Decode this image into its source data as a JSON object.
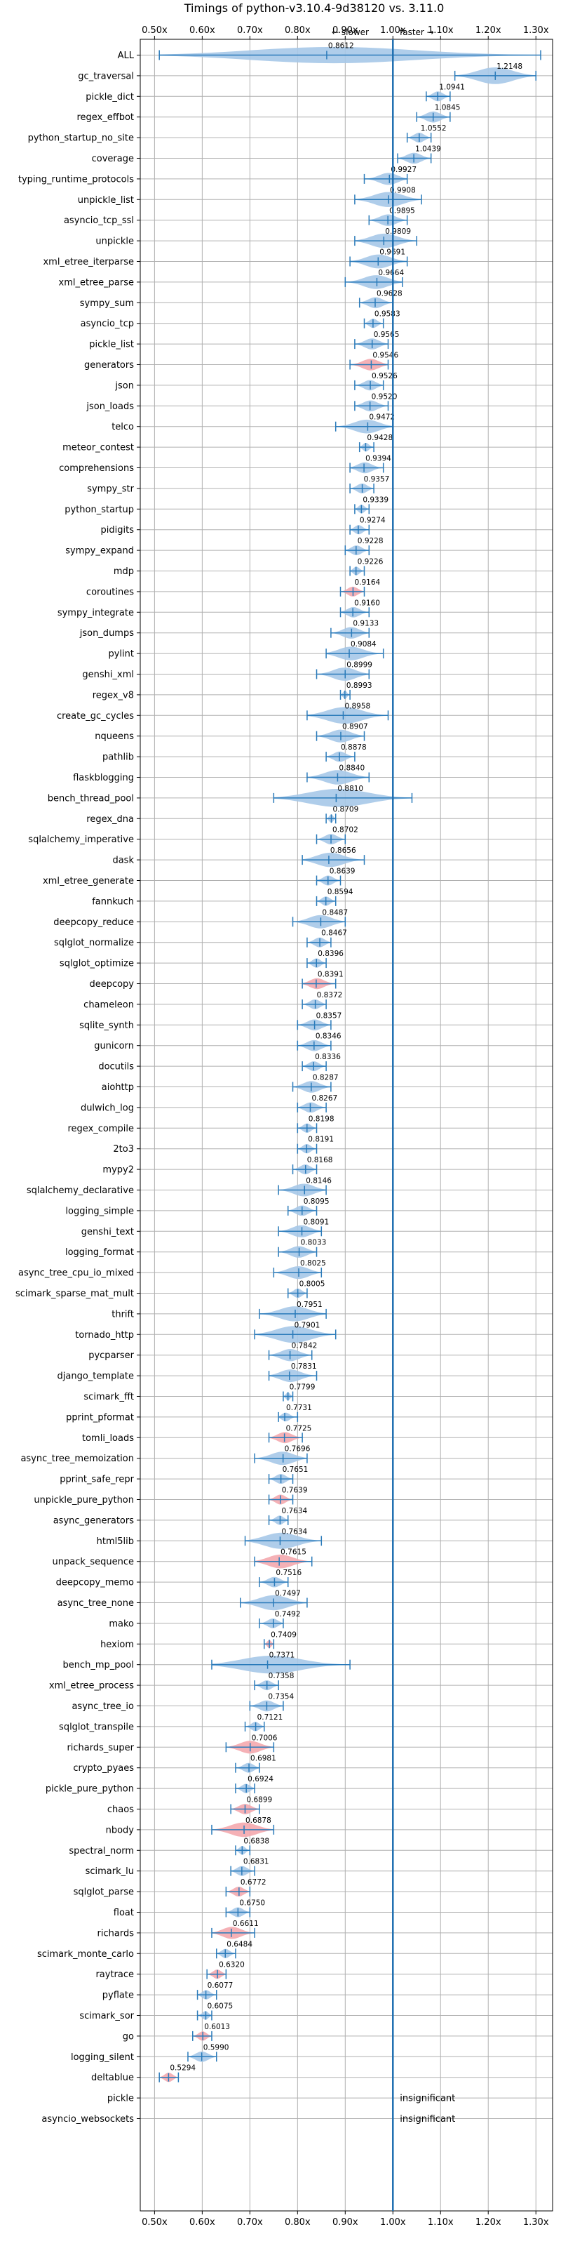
{
  "chart_data": {
    "type": "violin",
    "title": "Timings of python-v3.10.4-9d38120 vs. 3.11.0",
    "direction_left": "← slower",
    "direction_right": "faster →",
    "xlim": [
      0.47,
      1.335
    ],
    "x_ticks": [
      0.5,
      0.6,
      0.7,
      0.8,
      0.9,
      1.0,
      1.1,
      1.2,
      1.3
    ],
    "x_tick_labels": [
      "0.50x",
      "0.60x",
      "0.70x",
      "0.80x",
      "0.90x",
      "1.00x",
      "1.10x",
      "1.20x",
      "1.30x"
    ],
    "reference_line": 1.0,
    "grid": true,
    "colors": {
      "normal": "#a6c8e8",
      "highlight": "#f4a8ae",
      "bar": "#2b7bba",
      "reference": "#1f6fb0",
      "grid": "#b0b0b0"
    },
    "benchmarks": [
      {
        "name": "ALL",
        "value": 0.8612,
        "lo": 0.51,
        "hi": 1.31,
        "hl": false
      },
      {
        "name": "gc_traversal",
        "value": 1.2148,
        "lo": 1.13,
        "hi": 1.3,
        "hl": false
      },
      {
        "name": "pickle_dict",
        "value": 1.0941,
        "lo": 1.07,
        "hi": 1.12,
        "hl": false
      },
      {
        "name": "regex_effbot",
        "value": 1.0845,
        "lo": 1.05,
        "hi": 1.12,
        "hl": false
      },
      {
        "name": "python_startup_no_site",
        "value": 1.0552,
        "lo": 1.03,
        "hi": 1.08,
        "hl": false
      },
      {
        "name": "coverage",
        "value": 1.0439,
        "lo": 1.01,
        "hi": 1.08,
        "hl": false
      },
      {
        "name": "typing_runtime_protocols",
        "value": 0.9927,
        "lo": 0.94,
        "hi": 1.03,
        "hl": false
      },
      {
        "name": "unpickle_list",
        "value": 0.9908,
        "lo": 0.92,
        "hi": 1.06,
        "hl": false
      },
      {
        "name": "asyncio_tcp_ssl",
        "value": 0.9895,
        "lo": 0.95,
        "hi": 1.03,
        "hl": false
      },
      {
        "name": "unpickle",
        "value": 0.9809,
        "lo": 0.92,
        "hi": 1.05,
        "hl": false
      },
      {
        "name": "xml_etree_iterparse",
        "value": 0.9691,
        "lo": 0.91,
        "hi": 1.03,
        "hl": false
      },
      {
        "name": "xml_etree_parse",
        "value": 0.9664,
        "lo": 0.9,
        "hi": 1.02,
        "hl": false
      },
      {
        "name": "sympy_sum",
        "value": 0.9628,
        "lo": 0.93,
        "hi": 1.0,
        "hl": false
      },
      {
        "name": "asyncio_tcp",
        "value": 0.9583,
        "lo": 0.94,
        "hi": 0.98,
        "hl": false
      },
      {
        "name": "pickle_list",
        "value": 0.9565,
        "lo": 0.92,
        "hi": 0.99,
        "hl": false
      },
      {
        "name": "generators",
        "value": 0.9546,
        "lo": 0.91,
        "hi": 0.99,
        "hl": true
      },
      {
        "name": "json",
        "value": 0.9526,
        "lo": 0.92,
        "hi": 0.98,
        "hl": false
      },
      {
        "name": "json_loads",
        "value": 0.952,
        "lo": 0.92,
        "hi": 0.99,
        "hl": false
      },
      {
        "name": "telco",
        "value": 0.9472,
        "lo": 0.88,
        "hi": 1.0,
        "hl": false
      },
      {
        "name": "meteor_contest",
        "value": 0.9428,
        "lo": 0.93,
        "hi": 0.96,
        "hl": false
      },
      {
        "name": "comprehensions",
        "value": 0.9394,
        "lo": 0.91,
        "hi": 0.98,
        "hl": false
      },
      {
        "name": "sympy_str",
        "value": 0.9357,
        "lo": 0.91,
        "hi": 0.96,
        "hl": false
      },
      {
        "name": "python_startup",
        "value": 0.9339,
        "lo": 0.92,
        "hi": 0.95,
        "hl": false
      },
      {
        "name": "pidigits",
        "value": 0.9274,
        "lo": 0.91,
        "hi": 0.95,
        "hl": false
      },
      {
        "name": "sympy_expand",
        "value": 0.9228,
        "lo": 0.9,
        "hi": 0.95,
        "hl": false
      },
      {
        "name": "mdp",
        "value": 0.9226,
        "lo": 0.91,
        "hi": 0.94,
        "hl": false
      },
      {
        "name": "coroutines",
        "value": 0.9164,
        "lo": 0.89,
        "hi": 0.94,
        "hl": true
      },
      {
        "name": "sympy_integrate",
        "value": 0.916,
        "lo": 0.89,
        "hi": 0.95,
        "hl": false
      },
      {
        "name": "json_dumps",
        "value": 0.9133,
        "lo": 0.87,
        "hi": 0.95,
        "hl": false
      },
      {
        "name": "pylint",
        "value": 0.9084,
        "lo": 0.86,
        "hi": 0.98,
        "hl": false
      },
      {
        "name": "genshi_xml",
        "value": 0.8999,
        "lo": 0.84,
        "hi": 0.95,
        "hl": false
      },
      {
        "name": "regex_v8",
        "value": 0.8993,
        "lo": 0.89,
        "hi": 0.91,
        "hl": false
      },
      {
        "name": "create_gc_cycles",
        "value": 0.8958,
        "lo": 0.82,
        "hi": 0.99,
        "hl": false
      },
      {
        "name": "nqueens",
        "value": 0.8907,
        "lo": 0.84,
        "hi": 0.94,
        "hl": false
      },
      {
        "name": "pathlib",
        "value": 0.8878,
        "lo": 0.86,
        "hi": 0.92,
        "hl": false
      },
      {
        "name": "flaskblogging",
        "value": 0.884,
        "lo": 0.82,
        "hi": 0.95,
        "hl": false
      },
      {
        "name": "bench_thread_pool",
        "value": 0.881,
        "lo": 0.75,
        "hi": 1.04,
        "hl": false
      },
      {
        "name": "regex_dna",
        "value": 0.8709,
        "lo": 0.86,
        "hi": 0.88,
        "hl": false
      },
      {
        "name": "sqlalchemy_imperative",
        "value": 0.8702,
        "lo": 0.84,
        "hi": 0.9,
        "hl": false
      },
      {
        "name": "dask",
        "value": 0.8656,
        "lo": 0.81,
        "hi": 0.94,
        "hl": false
      },
      {
        "name": "xml_etree_generate",
        "value": 0.8639,
        "lo": 0.84,
        "hi": 0.89,
        "hl": false
      },
      {
        "name": "fannkuch",
        "value": 0.8594,
        "lo": 0.84,
        "hi": 0.88,
        "hl": false
      },
      {
        "name": "deepcopy_reduce",
        "value": 0.8487,
        "lo": 0.79,
        "hi": 0.9,
        "hl": false
      },
      {
        "name": "sqlglot_normalize",
        "value": 0.8467,
        "lo": 0.82,
        "hi": 0.87,
        "hl": false
      },
      {
        "name": "sqlglot_optimize",
        "value": 0.8396,
        "lo": 0.82,
        "hi": 0.86,
        "hl": false
      },
      {
        "name": "deepcopy",
        "value": 0.8391,
        "lo": 0.81,
        "hi": 0.88,
        "hl": true
      },
      {
        "name": "chameleon",
        "value": 0.8372,
        "lo": 0.81,
        "hi": 0.86,
        "hl": false
      },
      {
        "name": "sqlite_synth",
        "value": 0.8357,
        "lo": 0.8,
        "hi": 0.87,
        "hl": false
      },
      {
        "name": "gunicorn",
        "value": 0.8346,
        "lo": 0.8,
        "hi": 0.87,
        "hl": false
      },
      {
        "name": "docutils",
        "value": 0.8336,
        "lo": 0.81,
        "hi": 0.86,
        "hl": false
      },
      {
        "name": "aiohttp",
        "value": 0.8287,
        "lo": 0.79,
        "hi": 0.87,
        "hl": false
      },
      {
        "name": "dulwich_log",
        "value": 0.8267,
        "lo": 0.8,
        "hi": 0.86,
        "hl": false
      },
      {
        "name": "regex_compile",
        "value": 0.8198,
        "lo": 0.8,
        "hi": 0.84,
        "hl": false
      },
      {
        "name": "2to3",
        "value": 0.8191,
        "lo": 0.8,
        "hi": 0.84,
        "hl": false
      },
      {
        "name": "mypy2",
        "value": 0.8168,
        "lo": 0.79,
        "hi": 0.84,
        "hl": false
      },
      {
        "name": "sqlalchemy_declarative",
        "value": 0.8146,
        "lo": 0.76,
        "hi": 0.86,
        "hl": false
      },
      {
        "name": "logging_simple",
        "value": 0.8095,
        "lo": 0.78,
        "hi": 0.84,
        "hl": false
      },
      {
        "name": "genshi_text",
        "value": 0.8091,
        "lo": 0.76,
        "hi": 0.85,
        "hl": false
      },
      {
        "name": "logging_format",
        "value": 0.8033,
        "lo": 0.76,
        "hi": 0.84,
        "hl": false
      },
      {
        "name": "async_tree_cpu_io_mixed",
        "value": 0.8025,
        "lo": 0.75,
        "hi": 0.85,
        "hl": false
      },
      {
        "name": "scimark_sparse_mat_mult",
        "value": 0.8005,
        "lo": 0.78,
        "hi": 0.82,
        "hl": false
      },
      {
        "name": "thrift",
        "value": 0.7951,
        "lo": 0.72,
        "hi": 0.86,
        "hl": false
      },
      {
        "name": "tornado_http",
        "value": 0.7901,
        "lo": 0.71,
        "hi": 0.88,
        "hl": false
      },
      {
        "name": "pycparser",
        "value": 0.7842,
        "lo": 0.74,
        "hi": 0.83,
        "hl": false
      },
      {
        "name": "django_template",
        "value": 0.7831,
        "lo": 0.74,
        "hi": 0.84,
        "hl": false
      },
      {
        "name": "scimark_fft",
        "value": 0.7799,
        "lo": 0.77,
        "hi": 0.79,
        "hl": false
      },
      {
        "name": "pprint_pformat",
        "value": 0.7731,
        "lo": 0.76,
        "hi": 0.8,
        "hl": false
      },
      {
        "name": "tomli_loads",
        "value": 0.7725,
        "lo": 0.74,
        "hi": 0.81,
        "hl": true
      },
      {
        "name": "async_tree_memoization",
        "value": 0.7696,
        "lo": 0.71,
        "hi": 0.82,
        "hl": false
      },
      {
        "name": "pprint_safe_repr",
        "value": 0.7651,
        "lo": 0.74,
        "hi": 0.79,
        "hl": false
      },
      {
        "name": "unpickle_pure_python",
        "value": 0.7639,
        "lo": 0.74,
        "hi": 0.79,
        "hl": true
      },
      {
        "name": "async_generators",
        "value": 0.7634,
        "lo": 0.74,
        "hi": 0.78,
        "hl": false
      },
      {
        "name": "html5lib",
        "value": 0.7634,
        "lo": 0.69,
        "hi": 0.85,
        "hl": false
      },
      {
        "name": "unpack_sequence",
        "value": 0.7615,
        "lo": 0.71,
        "hi": 0.83,
        "hl": true
      },
      {
        "name": "deepcopy_memo",
        "value": 0.7516,
        "lo": 0.72,
        "hi": 0.78,
        "hl": false
      },
      {
        "name": "async_tree_none",
        "value": 0.7497,
        "lo": 0.68,
        "hi": 0.82,
        "hl": false
      },
      {
        "name": "mako",
        "value": 0.7492,
        "lo": 0.72,
        "hi": 0.77,
        "hl": false
      },
      {
        "name": "hexiom",
        "value": 0.7409,
        "lo": 0.73,
        "hi": 0.75,
        "hl": true
      },
      {
        "name": "bench_mp_pool",
        "value": 0.7371,
        "lo": 0.62,
        "hi": 0.91,
        "hl": false
      },
      {
        "name": "xml_etree_process",
        "value": 0.7358,
        "lo": 0.71,
        "hi": 0.76,
        "hl": false
      },
      {
        "name": "async_tree_io",
        "value": 0.7354,
        "lo": 0.7,
        "hi": 0.77,
        "hl": false
      },
      {
        "name": "sqlglot_transpile",
        "value": 0.7121,
        "lo": 0.69,
        "hi": 0.73,
        "hl": false
      },
      {
        "name": "richards_super",
        "value": 0.7006,
        "lo": 0.65,
        "hi": 0.75,
        "hl": true
      },
      {
        "name": "crypto_pyaes",
        "value": 0.6981,
        "lo": 0.67,
        "hi": 0.72,
        "hl": false
      },
      {
        "name": "pickle_pure_python",
        "value": 0.6924,
        "lo": 0.67,
        "hi": 0.71,
        "hl": false
      },
      {
        "name": "chaos",
        "value": 0.6899,
        "lo": 0.66,
        "hi": 0.72,
        "hl": true
      },
      {
        "name": "nbody",
        "value": 0.6878,
        "lo": 0.62,
        "hi": 0.75,
        "hl": true
      },
      {
        "name": "spectral_norm",
        "value": 0.6838,
        "lo": 0.67,
        "hi": 0.7,
        "hl": false
      },
      {
        "name": "scimark_lu",
        "value": 0.6831,
        "lo": 0.66,
        "hi": 0.71,
        "hl": false
      },
      {
        "name": "sqlglot_parse",
        "value": 0.6772,
        "lo": 0.65,
        "hi": 0.7,
        "hl": true
      },
      {
        "name": "float",
        "value": 0.675,
        "lo": 0.65,
        "hi": 0.7,
        "hl": false
      },
      {
        "name": "richards",
        "value": 0.6611,
        "lo": 0.62,
        "hi": 0.71,
        "hl": true
      },
      {
        "name": "scimark_monte_carlo",
        "value": 0.6484,
        "lo": 0.63,
        "hi": 0.67,
        "hl": false
      },
      {
        "name": "raytrace",
        "value": 0.632,
        "lo": 0.61,
        "hi": 0.65,
        "hl": true
      },
      {
        "name": "pyflate",
        "value": 0.6077,
        "lo": 0.59,
        "hi": 0.63,
        "hl": false
      },
      {
        "name": "scimark_sor",
        "value": 0.6075,
        "lo": 0.59,
        "hi": 0.62,
        "hl": false
      },
      {
        "name": "go",
        "value": 0.6013,
        "lo": 0.58,
        "hi": 0.62,
        "hl": true
      },
      {
        "name": "logging_silent",
        "value": 0.599,
        "lo": 0.57,
        "hi": 0.63,
        "hl": false
      },
      {
        "name": "deltablue",
        "value": 0.5294,
        "lo": 0.51,
        "hi": 0.55,
        "hl": true
      },
      {
        "name": "pickle",
        "value": null,
        "note": "insignificant"
      },
      {
        "name": "asyncio_websockets",
        "value": null,
        "note": "insignificant"
      }
    ]
  }
}
